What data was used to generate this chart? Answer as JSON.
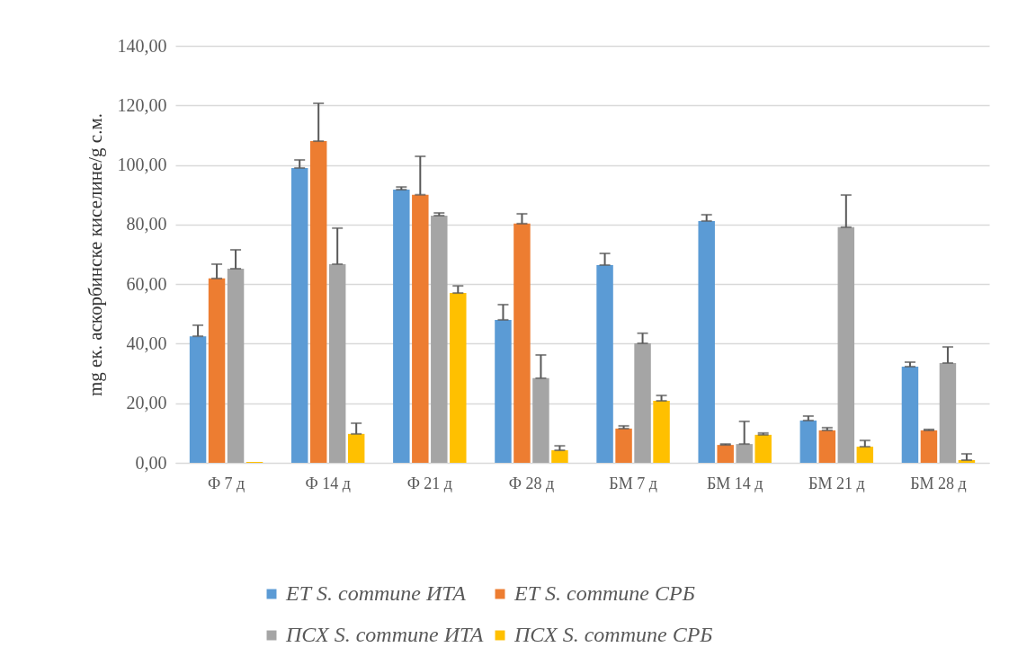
{
  "chart_data": {
    "type": "bar",
    "ylabel": "mg ек. аскорбинске киселине/g с.м.",
    "categories": [
      "Ф 7 д",
      "Ф 14 д",
      "Ф 21 д",
      "Ф 28 д",
      "БМ 7 д",
      "БМ 14 д",
      "БМ 21 д",
      "БМ 28 д"
    ],
    "series": [
      {
        "name": "ЕТ S. commune ИТА",
        "color": "#5b9bd5",
        "values": [
          42.5,
          99,
          91.7,
          48,
          66.4,
          81.2,
          14.2,
          32.3
        ],
        "errors": [
          [
            42.5,
            46.2
          ],
          [
            99,
            101.7
          ],
          [
            91.7,
            92.6
          ],
          [
            48,
            53.1
          ],
          [
            66.4,
            70.3
          ],
          [
            81.2,
            83.3
          ],
          [
            14.2,
            15.7
          ],
          [
            32.3,
            33.8
          ]
        ]
      },
      {
        "name": "ЕТ S. commune СРБ",
        "color": "#ed7d31",
        "values": [
          61.9,
          108,
          90,
          80.3,
          11.5,
          6,
          10.9,
          10.9
        ],
        "errors": [
          [
            61.9,
            66.7
          ],
          [
            108,
            120.7
          ],
          [
            90,
            102.9
          ],
          [
            80.3,
            83.6
          ],
          [
            11.5,
            12.4
          ],
          [
            6,
            6.3
          ],
          [
            10.9,
            11.8
          ],
          [
            10.9,
            11.2
          ]
        ]
      },
      {
        "name": "ПСХ S. commune ИТА",
        "color": "#a5a5a5",
        "values": [
          65.2,
          66.7,
          83,
          28.4,
          40.1,
          6.3,
          79.1,
          33.5
        ],
        "errors": [
          [
            65.2,
            71.5
          ],
          [
            66.7,
            78.8
          ],
          [
            83,
            83.9
          ],
          [
            28.4,
            36.2
          ],
          [
            40.1,
            43.5
          ],
          [
            6.3,
            13.9
          ],
          [
            79.1,
            89.9
          ],
          [
            33.5,
            38.9
          ]
        ]
      },
      {
        "name": "ПСХ S. commune СРБ",
        "color": "#ffc000",
        "values": [
          0.3,
          9.7,
          57,
          4.2,
          20.8,
          9.4,
          5.4,
          0.9
        ],
        "errors": [
          null,
          [
            9.7,
            13.3
          ],
          [
            57,
            59.4
          ],
          [
            4.2,
            5.7
          ],
          [
            20.8,
            22.6
          ],
          [
            9.4,
            10
          ],
          [
            5.4,
            7.5
          ],
          [
            0.9,
            3
          ]
        ]
      }
    ],
    "ylim": [
      0,
      140
    ],
    "yticks": [
      {
        "value": 0,
        "label": "0,00"
      },
      {
        "value": 20,
        "label": "20,00"
      },
      {
        "value": 40,
        "label": "40,00"
      },
      {
        "value": 60,
        "label": "60,00"
      },
      {
        "value": 80,
        "label": "80,00"
      },
      {
        "value": 100,
        "label": "100,00"
      },
      {
        "value": 120,
        "label": "120,00"
      },
      {
        "value": 140,
        "label": "140,00"
      }
    ],
    "grid": "y",
    "legend": "bottom"
  }
}
